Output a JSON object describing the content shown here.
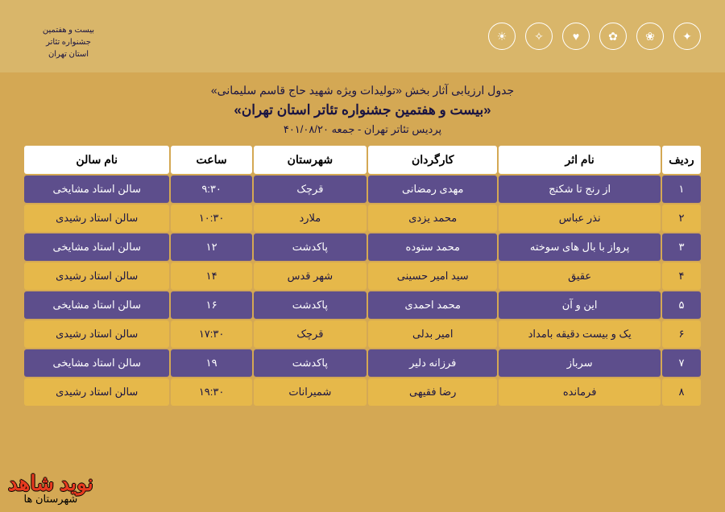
{
  "title": {
    "line1": "جدول ارزیابی آثار بخش «تولیدات ویژه شهید حاج قاسم سلیمانی»",
    "line2": "«بیست و هفتمین جشنواره تئاتر استان تهران»",
    "line3": "پردیس تئاتر تهران - جمعه ۴۰۱/۰۸/۲۰"
  },
  "columns": {
    "idx": "ردیف",
    "name": "نام اثر",
    "director": "کارگردان",
    "city": "شهرستان",
    "time": "ساعت",
    "hall": "نام سالن"
  },
  "rows": [
    {
      "idx": "۱",
      "name": "از رنج تا شکنج",
      "director": "مهدی رمضانی",
      "city": "قرچک",
      "time": "۹:۳۰",
      "hall": "سالن استاد مشایخی",
      "style": "purple"
    },
    {
      "idx": "۲",
      "name": "نذر عباس",
      "director": "محمد یزدی",
      "city": "ملارد",
      "time": "۱۰:۳۰",
      "hall": "سالن استاد رشیدی",
      "style": "yellow"
    },
    {
      "idx": "۳",
      "name": "پرواز با بال های سوخته",
      "director": "محمد ستوده",
      "city": "پاکدشت",
      "time": "۱۲",
      "hall": "سالن استاد مشایخی",
      "style": "purple"
    },
    {
      "idx": "۴",
      "name": "عقیق",
      "director": "سید امیر حسینی",
      "city": "شهر قدس",
      "time": "۱۴",
      "hall": "سالن استاد رشیدی",
      "style": "yellow"
    },
    {
      "idx": "۵",
      "name": "این و آن",
      "director": "محمد احمدی",
      "city": "پاکدشت",
      "time": "۱۶",
      "hall": "سالن استاد مشایخی",
      "style": "purple"
    },
    {
      "idx": "۶",
      "name": "یک و بیست دقیقه بامداد",
      "director": "امیر بدلی",
      "city": "قرچک",
      "time": "۱۷:۳۰",
      "hall": "سالن استاد رشیدی",
      "style": "yellow"
    },
    {
      "idx": "۷",
      "name": "سرباز",
      "director": "فرزانه دلیر",
      "city": "پاکدشت",
      "time": "۱۹",
      "hall": "سالن استاد مشایخی",
      "style": "purple"
    },
    {
      "idx": "۸",
      "name": "فرمانده",
      "director": "رضا فقیهی",
      "city": "شمیرانات",
      "time": "۱۹:۳۰",
      "hall": "سالن استاد رشیدی",
      "style": "yellow"
    }
  ],
  "palette": {
    "background": "#d9b66a",
    "header_cell": "#ffffff",
    "row_purple_bg": "#5d4e8c",
    "row_purple_text": "#ffffff",
    "row_yellow_bg": "#e6b84a",
    "row_yellow_text": "#1a1442",
    "title_text": "#1a1442"
  },
  "logos_left": [
    "○",
    "○",
    "○",
    "○",
    "○",
    "○"
  ],
  "logo_right_text": "بیست و هفتمین جشنواره تئاتر استان تهران",
  "watermark": {
    "main": "نوید شاهد",
    "sub": "شهرستان ها"
  },
  "fontsize": {
    "title1": 14,
    "title2": 17,
    "title3": 13,
    "th": 14,
    "td": 13
  }
}
